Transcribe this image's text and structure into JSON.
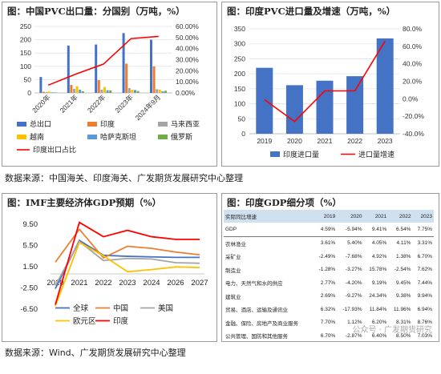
{
  "panels": {
    "p1_title": "图：中国PVC出口量：分国别（万吨，%）",
    "p2_title": "图：印度PVC进口量及增速（万吨，%）",
    "p3_title": "图：IMF主要经济体GDP预期（%）",
    "p4_title": "图：印度GDP细分项（%）"
  },
  "sources": {
    "top": "数据来源：中国海关、印度海关、广发期货发展研究中心整理",
    "bottom": "数据来源：Wind、广发期货发展研究中心整理"
  },
  "watermark": "公众号 · 广发期货研究",
  "chart_data": [
    {
      "type": "bar",
      "categories": [
        "2020年",
        "2021年",
        "2022年",
        "2023年",
        "2024年9月"
      ],
      "y_left_ticks": [
        "0",
        "50",
        "100",
        "150",
        "200",
        "250"
      ],
      "y_right_ticks": [
        "0.00%",
        "10.00%",
        "20.00%",
        "30.00%",
        "40.00%",
        "50.00%",
        "60.00%"
      ],
      "ylim_left": [
        0,
        250
      ],
      "ylim_right": [
        0,
        60
      ],
      "series": [
        {
          "name": "总出口",
          "color": "#4472c4",
          "values": [
            60,
            178,
            182,
            225,
            200
          ]
        },
        {
          "name": "印度",
          "color": "#ed7d31",
          "values": [
            4,
            30,
            48,
            110,
            100
          ]
        },
        {
          "name": "马来西亚",
          "color": "#a5a5a5",
          "values": [
            3,
            15,
            12,
            18,
            14
          ]
        },
        {
          "name": "越南",
          "color": "#ffc000",
          "values": [
            5,
            25,
            22,
            12,
            12
          ]
        },
        {
          "name": "哈萨克斯坦",
          "color": "#5b9bd5",
          "values": [
            2,
            12,
            10,
            11,
            6
          ]
        },
        {
          "name": "俄罗斯",
          "color": "#70ad47",
          "values": [
            2,
            6,
            9,
            7,
            8
          ]
        }
      ],
      "line": {
        "name": "印度出口占比",
        "color": "#ff0000",
        "axis": "right",
        "values": [
          7,
          17,
          26,
          49,
          51
        ]
      }
    },
    {
      "type": "bar",
      "categories": [
        "2019",
        "2020",
        "2021",
        "2022",
        "2023"
      ],
      "y_left_ticks": [
        "0",
        "50",
        "100",
        "150",
        "200",
        "250",
        "300",
        "350"
      ],
      "y_right_ticks": [
        "-40.0%",
        "-20.0%",
        "0.0%",
        "20.0%",
        "40.0%",
        "60.0%",
        "80.0%"
      ],
      "ylim_left": [
        0,
        350
      ],
      "ylim_right": [
        -40,
        80
      ],
      "series": [
        {
          "name": "印度进口量",
          "color": "#4472c4",
          "values": [
            220,
            162,
            177,
            192,
            318
          ]
        }
      ],
      "line": {
        "name": "进口量增速",
        "color": "#ff0000",
        "axis": "right",
        "values": [
          -1,
          -26,
          9,
          9,
          66
        ]
      }
    },
    {
      "type": "line",
      "categories": [
        "2020",
        "2021",
        "2022",
        "2023",
        "2024",
        "2026",
        "2027"
      ],
      "y_ticks": [
        "9.50",
        "5.50",
        "1.50",
        "-2.50",
        "-6.50"
      ],
      "ylim": [
        -6.5,
        9.5
      ],
      "series": [
        {
          "name": "全球",
          "color": "#4472c4",
          "values": [
            -2.8,
            6.3,
            3.5,
            3.3,
            3.2,
            3.1,
            3.1
          ]
        },
        {
          "name": "中国",
          "color": "#ed7d31",
          "values": [
            2.2,
            8.4,
            3.0,
            5.2,
            4.8,
            4.1,
            3.6
          ]
        },
        {
          "name": "美国",
          "color": "#a5a5a5",
          "values": [
            -2.2,
            6.1,
            2.5,
            2.9,
            2.8,
            2.1,
            2.0
          ]
        },
        {
          "name": "欧元区",
          "color": "#ffc000",
          "values": [
            -6.1,
            5.9,
            3.4,
            0.4,
            0.8,
            1.3,
            1.2
          ]
        },
        {
          "name": "印度",
          "color": "#ff0000",
          "values": [
            -5.8,
            9.7,
            7.0,
            8.2,
            7.0,
            6.5,
            6.5
          ]
        }
      ]
    },
    {
      "type": "table",
      "columns": [
        "实际同比增速",
        "2019",
        "2020",
        "2021",
        "2022",
        "2023"
      ],
      "rows": [
        [
          "GDP",
          "4.59%",
          "-5.94%",
          "9.41%",
          "6.54%",
          "7.75%"
        ],
        [
          "农林渔业",
          "3.61%",
          "5.40%",
          "4.05%",
          "4.11%",
          "3.31%"
        ],
        [
          "采矿业",
          "-2.49%",
          "-7.68%",
          "4.92%",
          "1.38%",
          "6.70%"
        ],
        [
          "制造业",
          "-1.28%",
          "-3.27%",
          "15.78%",
          "-2.54%",
          "7.62%"
        ],
        [
          "电力、天然气和水的供应",
          "2.77%",
          "-4.20%",
          "9.19%",
          "9.45%",
          "7.44%"
        ],
        [
          "建筑业",
          "2.69%",
          "-9.27%",
          "24.34%",
          "9.38%",
          "9.94%"
        ],
        [
          "贸易、酒店、运输及通讯业",
          "6.32%",
          "-17.93%",
          "11.84%",
          "11.96%",
          "6.94%"
        ],
        [
          "金融、保险、房地产及商业服务",
          "7.70%",
          "1.12%",
          "6.20%",
          "8.31%",
          "8.76%"
        ],
        [
          "公共管理、国防和其他服务",
          "6.70%",
          "-2.87%",
          "6.40%",
          "8.50%",
          "7.03%"
        ]
      ]
    }
  ]
}
